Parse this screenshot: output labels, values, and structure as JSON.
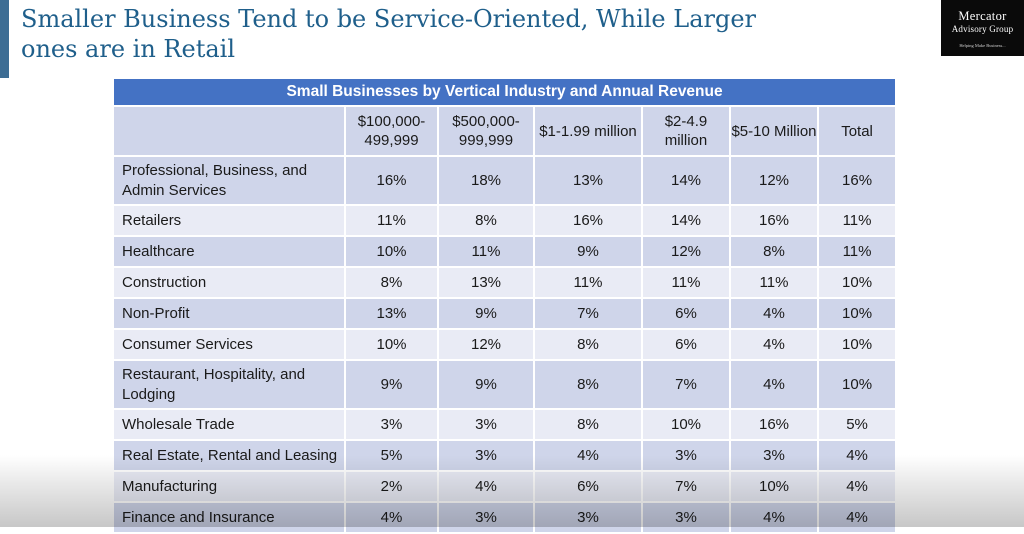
{
  "slide": {
    "title": "Smaller Business Tend to be Service-Oriented, While Larger ones are in Retail"
  },
  "logo": {
    "line1": "Mercator",
    "line2": "Advisory Group",
    "tagline": "Helping Make Business..."
  },
  "table": {
    "caption": "Small Businesses by Vertical Industry and Annual Revenue",
    "headers": [
      "",
      "$100,000-499,999",
      "$500,000-999,999",
      "$1-1.99 million",
      "$2-4.9 million",
      "$5-10 Million",
      "Total"
    ],
    "rows": [
      {
        "label": "Professional, Business, and Admin Services",
        "values": [
          "16%",
          "18%",
          "13%",
          "14%",
          "12%",
          "16%"
        ]
      },
      {
        "label": "Retailers",
        "values": [
          "11%",
          "8%",
          "16%",
          "14%",
          "16%",
          "11%"
        ]
      },
      {
        "label": "Healthcare",
        "values": [
          "10%",
          "11%",
          "9%",
          "12%",
          "8%",
          "11%"
        ]
      },
      {
        "label": "Construction",
        "values": [
          "8%",
          "13%",
          "11%",
          "11%",
          "11%",
          "10%"
        ]
      },
      {
        "label": "Non-Profit",
        "values": [
          "13%",
          "9%",
          "7%",
          "6%",
          "4%",
          "10%"
        ]
      },
      {
        "label": "Consumer Services",
        "values": [
          "10%",
          "12%",
          "8%",
          "6%",
          "4%",
          "10%"
        ]
      },
      {
        "label": "Restaurant, Hospitality, and Lodging",
        "values": [
          "9%",
          "9%",
          "8%",
          "7%",
          "4%",
          "10%"
        ]
      },
      {
        "label": "Wholesale Trade",
        "values": [
          "3%",
          "3%",
          "8%",
          "10%",
          "16%",
          "5%"
        ]
      },
      {
        "label": "Real Estate, Rental and Leasing",
        "values": [
          "5%",
          "3%",
          "4%",
          "3%",
          "3%",
          "4%"
        ]
      },
      {
        "label": "Manufacturing",
        "values": [
          "2%",
          "4%",
          "6%",
          "7%",
          "10%",
          "4%"
        ]
      },
      {
        "label": "Finance and Insurance",
        "values": [
          "4%",
          "3%",
          "3%",
          "3%",
          "4%",
          "4%"
        ]
      }
    ]
  },
  "colors": {
    "title": "#1f5f8b",
    "caption_bg": "#4472c4",
    "band_light": "#e9ebf5",
    "band_dark": "#cfd5ea"
  }
}
